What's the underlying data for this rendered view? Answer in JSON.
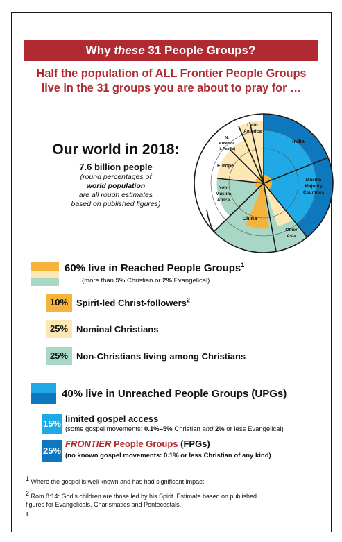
{
  "banner": {
    "pre": "Why ",
    "em": "these",
    "post": " 31 People Groups?"
  },
  "subhead": {
    "line1": "Half the population of ALL Frontier People Groups",
    "line2": "live in the 31 groups you are about to pray for …"
  },
  "world": {
    "title": "Our world in 2018:",
    "population": "7.6 billion people",
    "note1": "(round percentages of",
    "note2": "world population",
    "note3": "are all rough estimates",
    "note4": "based on published figures)"
  },
  "pie_labels": {
    "latin_america": [
      "Latin",
      "America"
    ],
    "n_america": [
      "N.",
      "America",
      "(& Pacific)"
    ],
    "europe": "Europe",
    "non_muslim_africa": [
      "Non-",
      "Muslim",
      "Africa"
    ],
    "china": "China",
    "india": "India",
    "muslim_majority": [
      "Muslim",
      "Majority",
      "Countries"
    ],
    "other_asia": [
      "Other",
      "Asia"
    ]
  },
  "reached": {
    "title": "60% live in Reached People Groups",
    "sup": "1",
    "sub_pre": "(more than ",
    "sub_b1": "5%",
    "sub_mid": " Christian or ",
    "sub_b2": "2%",
    "sub_post": " Evangelical)",
    "items": [
      {
        "pct": "10%",
        "label": "Spirit-led Christ-followers",
        "sup": "2",
        "color": "#f4b43c"
      },
      {
        "pct": "25%",
        "label": "Nominal Christians",
        "sup": "",
        "color": "#fde7b4"
      },
      {
        "pct": "25%",
        "label": "Non-Christians living among Christians",
        "sup": "",
        "color": "#a8d8c5"
      }
    ]
  },
  "unreached": {
    "title": "40% live in Unreached People Groups (UPGs)",
    "items": [
      {
        "pct": "15%",
        "color": "#1fa9e6",
        "label": "limited gospel access",
        "sub_pre": "(some gospel movements: ",
        "sub_b1": "0.1%–5%",
        "sub_mid1": " Christian ",
        "sub_i": "and",
        "sub_b2": "2%",
        "sub_post": " or less Evangelical)"
      },
      {
        "pct": "25%",
        "color": "#0e78bf",
        "label_em": "FRONTIER",
        "label_rest": " People Groups",
        "label_abbr": " (FPGs)",
        "sub": "(no known gospel movements: 0.1% or less Christian of any kind)"
      }
    ]
  },
  "footnotes": {
    "fn1": "Where the gospel is well known and has had significant impact.",
    "fn1_mark": "1",
    "fn2_mark": "2",
    "fn2_line1": "Rom 8:14: God’s children are those led by his Spirit. Estimate based on published",
    "fn2_line2": "figures for Evangelicals, Charismatics and Pentecostals."
  },
  "page_number": "i",
  "colors": {
    "accent_red": "#b12a32",
    "reached_gold": "#f4b43c",
    "reached_cream": "#fde7b4",
    "reached_green": "#a8d8c5",
    "upg_light": "#1fa9e6",
    "fpg_dark": "#0e78bf"
  }
}
